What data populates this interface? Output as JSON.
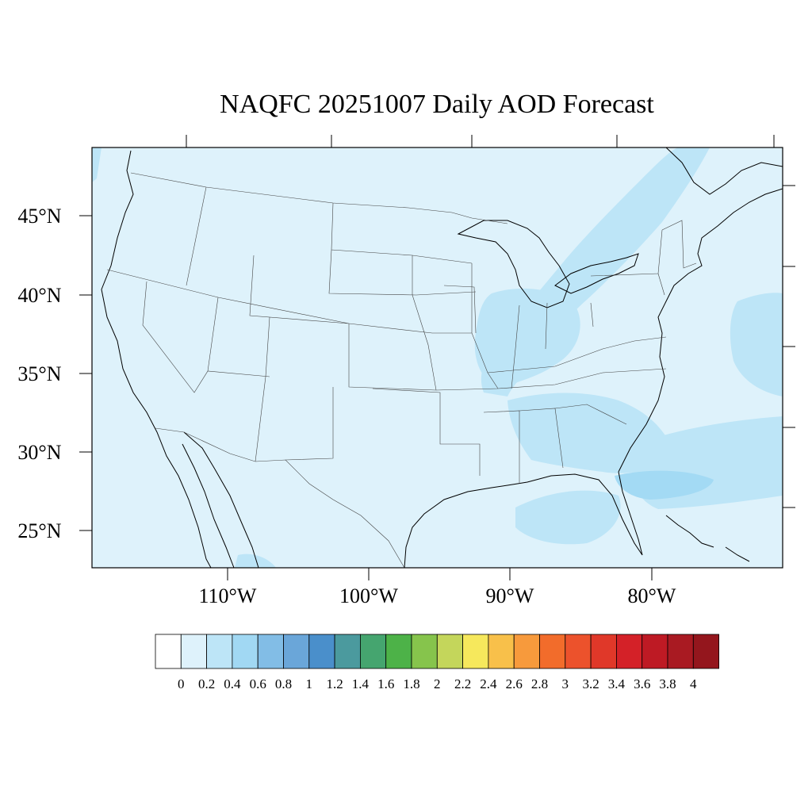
{
  "title": "NAQFC 20251007 Daily AOD Forecast",
  "map": {
    "lat_labels": [
      "45°N",
      "40°N",
      "35°N",
      "30°N",
      "25°N"
    ],
    "lon_labels": [
      "110°W",
      "100°W",
      "90°W",
      "80°W"
    ],
    "background_color": "#def2fb",
    "enhanced_color": "#bde5f7",
    "peak_color": "#a3daf4"
  },
  "colorbar": {
    "labels": [
      "0",
      "0.2",
      "0.4",
      "0.6",
      "0.8",
      "1",
      "1.2",
      "1.4",
      "1.6",
      "1.8",
      "2",
      "2.2",
      "2.4",
      "2.6",
      "2.8",
      "3",
      "3.2",
      "3.4",
      "3.6",
      "3.8",
      "4"
    ],
    "colors": [
      "#ffffff",
      "#def2fb",
      "#bde5f7",
      "#a1d8f3",
      "#82bde6",
      "#6aa6d9",
      "#4a8fcb",
      "#4b9a9e",
      "#45a56f",
      "#4db248",
      "#86c44c",
      "#c4d65b",
      "#f6e85c",
      "#f8c04a",
      "#f79a3c",
      "#f26c2b",
      "#ec522c",
      "#e03829",
      "#d42128",
      "#be1a24",
      "#a91a22",
      "#94161d"
    ]
  }
}
